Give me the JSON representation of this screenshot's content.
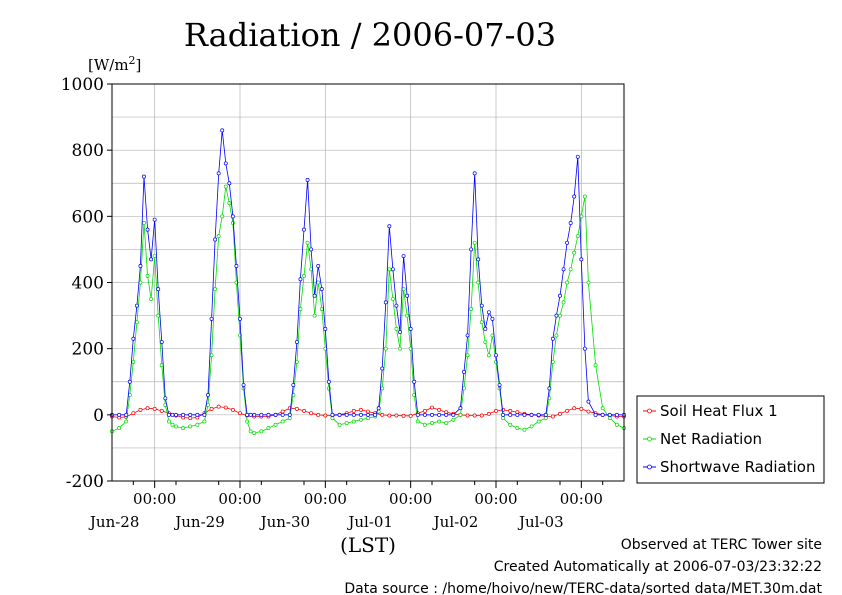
{
  "chart_data": {
    "type": "line",
    "title": "Radiation / 2006-07-03",
    "ylabel": "[W/m2]",
    "ylabel_base": "[W/m",
    "ylabel_sup": "2",
    "ylabel_close": "]",
    "xlabel": "(LST)",
    "ylim": [
      -200,
      1000
    ],
    "yticks": [
      -200,
      0,
      200,
      400,
      600,
      800,
      1000
    ],
    "x_unit": "hours from 2006-06-27 12:00 LST",
    "xlim": [
      0,
      144
    ],
    "xticks": [
      {
        "x": 12,
        "time": "00:00",
        "date": "Jun-28"
      },
      {
        "x": 36,
        "time": "00:00",
        "date": "Jun-29"
      },
      {
        "x": 60,
        "time": "00:00",
        "date": "Jun-30"
      },
      {
        "x": 84,
        "time": "00:00",
        "date": "Jul-01"
      },
      {
        "x": 108,
        "time": "00:00",
        "date": "Jul-02"
      },
      {
        "x": 132,
        "time": "00:00",
        "date": "Jul-03"
      }
    ],
    "grid": true,
    "legend_position": "right",
    "series": [
      {
        "name": "Soil Heat Flux 1",
        "color": "#ff0000",
        "x": [
          0,
          2,
          4,
          6,
          8,
          10,
          12,
          14,
          16,
          18,
          20,
          22,
          24,
          26,
          28,
          30,
          32,
          34,
          36,
          38,
          40,
          42,
          44,
          46,
          48,
          50,
          52,
          54,
          56,
          58,
          60,
          62,
          64,
          66,
          68,
          70,
          72,
          74,
          76,
          78,
          80,
          82,
          84,
          86,
          88,
          90,
          92,
          94,
          96,
          98,
          100,
          102,
          104,
          106,
          108,
          110,
          112,
          114,
          116,
          118,
          120,
          122,
          124,
          126,
          128,
          130,
          132,
          134,
          136,
          138,
          140,
          142,
          144
        ],
        "y": [
          -5,
          -8,
          -6,
          5,
          15,
          20,
          18,
          12,
          5,
          -2,
          -8,
          -10,
          -8,
          5,
          18,
          25,
          22,
          15,
          5,
          -2,
          -5,
          -5,
          -5,
          0,
          10,
          20,
          18,
          12,
          5,
          0,
          -2,
          -2,
          0,
          5,
          12,
          15,
          10,
          5,
          0,
          -2,
          -2,
          -3,
          -3,
          5,
          12,
          22,
          15,
          8,
          3,
          0,
          -2,
          -2,
          -2,
          3,
          12,
          15,
          12,
          8,
          3,
          0,
          -2,
          -5,
          -5,
          3,
          12,
          20,
          18,
          10,
          5,
          0,
          -2,
          -5,
          -5
        ]
      },
      {
        "name": "Net Radiation",
        "color": "#00dd00",
        "x": [
          0,
          2,
          4,
          5,
          6,
          7,
          8,
          9,
          10,
          11,
          12,
          13,
          14,
          15,
          16,
          17,
          18,
          20,
          22,
          24,
          26,
          27,
          28,
          29,
          30,
          31,
          32,
          33,
          34,
          35,
          36,
          37,
          38,
          39,
          40,
          42,
          44,
          46,
          48,
          50,
          51,
          52,
          53,
          54,
          55,
          56,
          57,
          58,
          59,
          60,
          61,
          62,
          64,
          66,
          68,
          70,
          72,
          74,
          75,
          76,
          77,
          78,
          79,
          80,
          81,
          82,
          83,
          84,
          85,
          86,
          88,
          90,
          92,
          94,
          96,
          98,
          99,
          100,
          101,
          102,
          103,
          104,
          105,
          106,
          107,
          108,
          109,
          110,
          112,
          114,
          116,
          118,
          120,
          122,
          123,
          124,
          125,
          126,
          127,
          128,
          129,
          130,
          131,
          132,
          133,
          134,
          136,
          138,
          140,
          142,
          144
        ],
        "y": [
          -50,
          -40,
          -20,
          60,
          160,
          280,
          400,
          580,
          420,
          350,
          480,
          300,
          150,
          30,
          -20,
          -30,
          -35,
          -40,
          -35,
          -30,
          -20,
          30,
          180,
          380,
          540,
          600,
          690,
          640,
          580,
          400,
          240,
          80,
          -20,
          -50,
          -55,
          -50,
          -40,
          -30,
          -20,
          -10,
          60,
          160,
          320,
          420,
          520,
          440,
          300,
          400,
          320,
          200,
          80,
          -10,
          -30,
          -25,
          -20,
          -15,
          -10,
          -5,
          10,
          80,
          200,
          440,
          350,
          260,
          200,
          380,
          300,
          200,
          60,
          -20,
          -30,
          -25,
          -20,
          -25,
          -15,
          0,
          80,
          180,
          320,
          520,
          400,
          280,
          220,
          180,
          240,
          160,
          80,
          -10,
          -30,
          -40,
          -45,
          -35,
          -20,
          -10,
          50,
          160,
          240,
          300,
          340,
          400,
          440,
          490,
          540,
          600,
          660,
          400,
          150,
          20,
          -10,
          -30,
          -40
        ]
      },
      {
        "name": "Shortwave Radiation",
        "color": "#0000ff",
        "x": [
          0,
          2,
          4,
          5,
          6,
          7,
          8,
          9,
          10,
          11,
          12,
          13,
          14,
          15,
          16,
          17,
          18,
          20,
          22,
          24,
          26,
          27,
          28,
          29,
          30,
          31,
          32,
          33,
          34,
          35,
          36,
          37,
          38,
          39,
          40,
          42,
          44,
          46,
          48,
          50,
          51,
          52,
          53,
          54,
          55,
          56,
          57,
          58,
          59,
          60,
          61,
          62,
          64,
          66,
          68,
          70,
          72,
          74,
          75,
          76,
          77,
          78,
          79,
          80,
          81,
          82,
          83,
          84,
          85,
          86,
          88,
          90,
          92,
          94,
          96,
          98,
          99,
          100,
          101,
          102,
          103,
          104,
          105,
          106,
          107,
          108,
          109,
          110,
          112,
          114,
          116,
          118,
          120,
          122,
          123,
          124,
          125,
          126,
          127,
          128,
          129,
          130,
          131,
          132,
          133,
          134,
          136,
          138,
          140,
          142,
          144
        ],
        "y": [
          0,
          0,
          0,
          100,
          230,
          330,
          450,
          720,
          560,
          470,
          590,
          380,
          220,
          50,
          0,
          0,
          0,
          0,
          0,
          0,
          0,
          60,
          290,
          530,
          730,
          860,
          760,
          700,
          600,
          450,
          290,
          90,
          0,
          0,
          0,
          0,
          0,
          0,
          0,
          0,
          90,
          220,
          410,
          560,
          710,
          500,
          360,
          450,
          380,
          260,
          100,
          0,
          0,
          0,
          0,
          0,
          0,
          0,
          20,
          140,
          340,
          570,
          440,
          330,
          250,
          480,
          360,
          260,
          100,
          0,
          0,
          0,
          0,
          0,
          0,
          20,
          130,
          240,
          500,
          730,
          470,
          330,
          260,
          310,
          290,
          180,
          90,
          0,
          0,
          0,
          0,
          0,
          0,
          0,
          80,
          230,
          300,
          360,
          440,
          520,
          580,
          660,
          780,
          470,
          200,
          40,
          0,
          0,
          0,
          0,
          0
        ]
      }
    ]
  },
  "footer": {
    "line1": "Observed at TERC Tower site",
    "line2": "Created Automatically at 2006-07-03/23:32:22",
    "line3": "Data source : /home/hoivo/new/TERC-data/sorted  data/MET.30m.dat"
  }
}
